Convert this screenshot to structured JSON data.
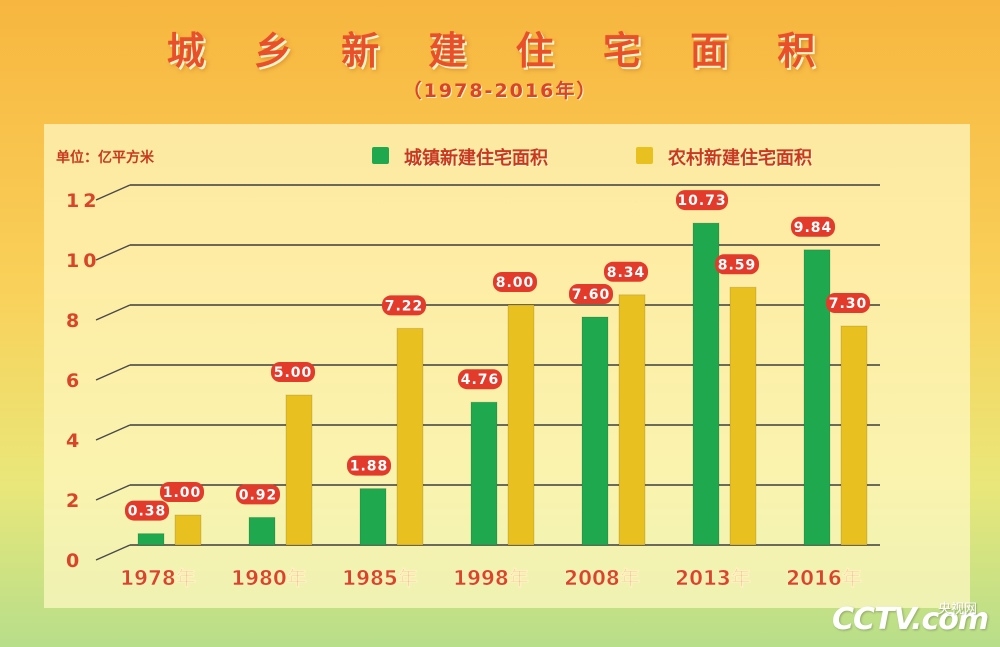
{
  "title": "城 乡 新 建 住 宅 面 积",
  "subtitle": "（1978-2016年）",
  "unit_label": "单位：亿平方米",
  "colors": {
    "urban": "#1fa84e",
    "rural": "#e8c020",
    "label_bg": "#e23b2b",
    "axis_text": "#d8452a"
  },
  "logo": {
    "main": "CCTV.com",
    "sub": "央视网"
  },
  "chart_data": {
    "type": "bar",
    "title": "城 乡 新 建 住 宅 面 积",
    "subtitle": "（1978-2016年）",
    "ylabel": "单位：亿平方米",
    "ylim": [
      0,
      12
    ],
    "yticks": [
      "0",
      "2",
      "4",
      "6",
      "8",
      "10",
      "12"
    ],
    "categories": [
      "1978年",
      "1980年",
      "1985年",
      "1998年",
      "2008年",
      "2013年",
      "2016年"
    ],
    "series": [
      {
        "name": "城镇新建住宅面积",
        "values": [
          0.38,
          0.92,
          1.88,
          4.76,
          7.6,
          10.73,
          9.84
        ],
        "labels": [
          "0.38",
          "0.92",
          "1.88",
          "4.76",
          "7.60",
          "10.73",
          "9.84"
        ]
      },
      {
        "name": "农村新建住宅面积",
        "values": [
          1.0,
          5.0,
          7.22,
          8.0,
          8.34,
          8.59,
          7.3
        ],
        "labels": [
          "1.00",
          "5.00",
          "7.22",
          "8.00",
          "8.34",
          "8.59",
          "7.30"
        ]
      }
    ],
    "legend_position": "top-right",
    "grid": true
  }
}
